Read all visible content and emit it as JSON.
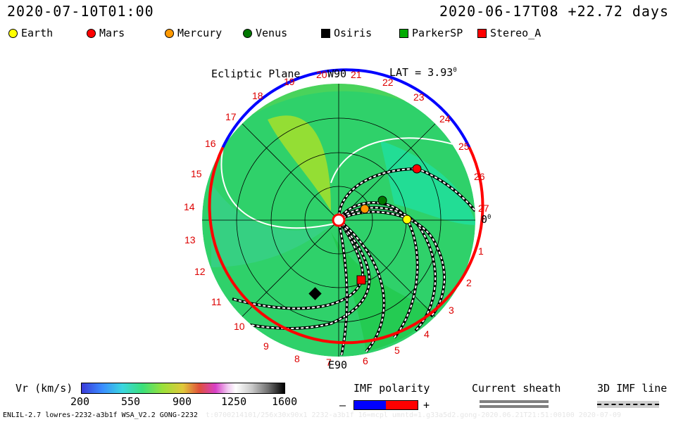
{
  "header": {
    "left_datetime": "2020-07-10T01:00",
    "right_datetime": "2020-06-17T08 +22.72 days"
  },
  "legend": [
    {
      "label": "Earth",
      "marker": "circle",
      "color": "#ffff00"
    },
    {
      "label": "Mars",
      "marker": "circle",
      "color": "#ff0000"
    },
    {
      "label": "Mercury",
      "marker": "circle",
      "color": "#ff9900"
    },
    {
      "label": "Venus",
      "marker": "circle",
      "color": "#007700"
    },
    {
      "label": "Osiris",
      "marker": "square",
      "color": "#000000"
    },
    {
      "label": "ParkerSP",
      "marker": "square",
      "color": "#00aa00"
    },
    {
      "label": "Stereo_A",
      "marker": "square",
      "color": "#ff0000"
    }
  ],
  "plot": {
    "title": "Ecliptic Plane",
    "lat_label": "LAT = 3.93",
    "lat_unit": "0",
    "w90_label": "W90",
    "e90_label": "E90",
    "zero_label": "0",
    "zero_unit": "0",
    "carrington_labels": [
      "19",
      "20",
      "21",
      "22",
      "23",
      "24",
      "25",
      "26",
      "27",
      "1",
      "2",
      "3",
      "4",
      "5",
      "6",
      "7",
      "8",
      "9",
      "10",
      "11",
      "12",
      "13",
      "14",
      "15",
      "16",
      "17",
      "18"
    ],
    "colors": {
      "ring_blue": "#0000ff",
      "ring_red": "#ff0000",
      "label_red": "#dd0000",
      "solar_wind_base": "#2fd16a"
    }
  },
  "colorbar": {
    "label": "Vr (km/s)",
    "ticks": [
      "200",
      "550",
      "900",
      "1250",
      "1600"
    ]
  },
  "imf_polarity": {
    "title": "IMF polarity",
    "minus": "–",
    "plus": "+",
    "colors": [
      "#0000ff",
      "#ff0000"
    ]
  },
  "current_sheath": {
    "title": "Current sheath"
  },
  "imf_3d": {
    "title": "3D IMF line"
  },
  "footer": {
    "left": "ENLIL-2.7 lowres-2232-a3b1f WSA_V2.2 GONG-2232",
    "faint": "t:0700214101/256x30x90x1 2232-a3b1f 16=mcpl umntd=1.g33a5d2.gong-2020.06.21T21:51:00100     2020-07-09"
  }
}
